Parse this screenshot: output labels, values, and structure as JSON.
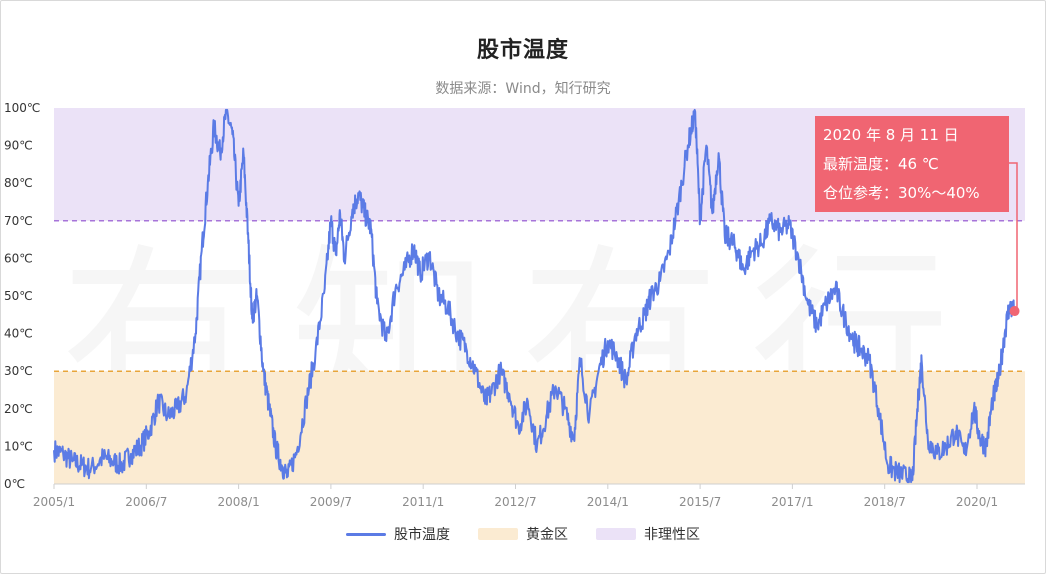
{
  "header": {
    "title": "股市温度",
    "subtitle": "数据来源：Wind，知行研究"
  },
  "watermark": "有知有行",
  "callout": {
    "date": "2020 年 8 月 11 日",
    "temperature": "最新温度：46 ℃",
    "position": "仓位参考：30%～40%"
  },
  "legend": [
    {
      "label": "股市温度",
      "color": "#5b7be5"
    },
    {
      "label": "黄金区",
      "color": "#fbebd2"
    },
    {
      "label": "非理性区",
      "color": "#ebe2f7"
    }
  ],
  "chart_data": {
    "type": "line",
    "title": "股市温度",
    "subtitle": "数据来源：Wind，知行研究",
    "ylim": [
      0,
      100
    ],
    "y_ticks": [
      "0℃",
      "10℃",
      "20℃",
      "30℃",
      "40℃",
      "50℃",
      "60℃",
      "70℃",
      "80℃",
      "90℃",
      "100℃"
    ],
    "x_ticks": [
      "2005/1",
      "2006/7",
      "2008/1",
      "2009/7",
      "2011/1",
      "2012/7",
      "2014/1",
      "2015/7",
      "2017/1",
      "2018/7",
      "2020/1"
    ],
    "x_range": [
      "2005/1",
      "2020/8"
    ],
    "zones": [
      {
        "name": "黄金区",
        "from": 0,
        "to": 30,
        "color": "#fbebd2",
        "line_color": "#e8a53a"
      },
      {
        "name": "非理性区",
        "from": 70,
        "to": 100,
        "color": "#ebe2f7",
        "line_color": "#a774d9"
      }
    ],
    "series": [
      {
        "name": "股市温度",
        "color": "#5b7be5",
        "points": [
          [
            2005.0,
            9
          ],
          [
            2005.15,
            8
          ],
          [
            2005.3,
            6
          ],
          [
            2005.45,
            5
          ],
          [
            2005.6,
            4
          ],
          [
            2005.8,
            7
          ],
          [
            2005.95,
            6
          ],
          [
            2006.1,
            5
          ],
          [
            2006.25,
            8
          ],
          [
            2006.4,
            10
          ],
          [
            2006.55,
            14
          ],
          [
            2006.7,
            22
          ],
          [
            2006.85,
            18
          ],
          [
            2007.0,
            20
          ],
          [
            2007.15,
            24
          ],
          [
            2007.3,
            40
          ],
          [
            2007.4,
            62
          ],
          [
            2007.5,
            80
          ],
          [
            2007.6,
            95
          ],
          [
            2007.7,
            88
          ],
          [
            2007.8,
            99
          ],
          [
            2007.9,
            93
          ],
          [
            2008.0,
            74
          ],
          [
            2008.08,
            88
          ],
          [
            2008.16,
            64
          ],
          [
            2008.22,
            44
          ],
          [
            2008.3,
            50
          ],
          [
            2008.4,
            30
          ],
          [
            2008.5,
            20
          ],
          [
            2008.6,
            10
          ],
          [
            2008.7,
            5
          ],
          [
            2008.8,
            2
          ],
          [
            2008.95,
            9
          ],
          [
            2009.1,
            22
          ],
          [
            2009.25,
            35
          ],
          [
            2009.4,
            52
          ],
          [
            2009.5,
            70
          ],
          [
            2009.58,
            61
          ],
          [
            2009.65,
            72
          ],
          [
            2009.72,
            60
          ],
          [
            2009.85,
            73
          ],
          [
            2009.95,
            77
          ],
          [
            2010.05,
            72
          ],
          [
            2010.15,
            68
          ],
          [
            2010.25,
            48
          ],
          [
            2010.4,
            38
          ],
          [
            2010.55,
            52
          ],
          [
            2010.7,
            57
          ],
          [
            2010.85,
            63
          ],
          [
            2010.95,
            56
          ],
          [
            2011.1,
            61
          ],
          [
            2011.25,
            50
          ],
          [
            2011.4,
            47
          ],
          [
            2011.55,
            40
          ],
          [
            2011.7,
            36
          ],
          [
            2011.85,
            30
          ],
          [
            2012.0,
            22
          ],
          [
            2012.1,
            24
          ],
          [
            2012.25,
            30
          ],
          [
            2012.4,
            24
          ],
          [
            2012.55,
            15
          ],
          [
            2012.7,
            22
          ],
          [
            2012.85,
            10
          ],
          [
            2013.0,
            18
          ],
          [
            2013.15,
            26
          ],
          [
            2013.3,
            20
          ],
          [
            2013.45,
            12
          ],
          [
            2013.55,
            33
          ],
          [
            2013.7,
            18
          ],
          [
            2013.85,
            30
          ],
          [
            2014.0,
            38
          ],
          [
            2014.15,
            34
          ],
          [
            2014.3,
            27
          ],
          [
            2014.45,
            40
          ],
          [
            2014.6,
            45
          ],
          [
            2014.7,
            50
          ],
          [
            2014.85,
            54
          ],
          [
            2015.0,
            62
          ],
          [
            2015.15,
            75
          ],
          [
            2015.3,
            90
          ],
          [
            2015.42,
            99
          ],
          [
            2015.5,
            70
          ],
          [
            2015.6,
            90
          ],
          [
            2015.7,
            72
          ],
          [
            2015.8,
            88
          ],
          [
            2015.9,
            66
          ],
          [
            2016.0,
            65
          ],
          [
            2016.1,
            62
          ],
          [
            2016.2,
            57
          ],
          [
            2016.35,
            62
          ],
          [
            2016.5,
            64
          ],
          [
            2016.65,
            70
          ],
          [
            2016.8,
            67
          ],
          [
            2016.95,
            69
          ],
          [
            2017.1,
            60
          ],
          [
            2017.25,
            48
          ],
          [
            2017.4,
            42
          ],
          [
            2017.55,
            48
          ],
          [
            2017.7,
            52
          ],
          [
            2017.85,
            44
          ],
          [
            2018.0,
            38
          ],
          [
            2018.1,
            36
          ],
          [
            2018.25,
            33
          ],
          [
            2018.4,
            20
          ],
          [
            2018.55,
            5
          ],
          [
            2018.7,
            3
          ],
          [
            2018.85,
            2
          ],
          [
            2018.95,
            1
          ],
          [
            2019.05,
            24
          ],
          [
            2019.1,
            33
          ],
          [
            2019.2,
            12
          ],
          [
            2019.35,
            8
          ],
          [
            2019.5,
            10
          ],
          [
            2019.65,
            14
          ],
          [
            2019.8,
            8
          ],
          [
            2019.95,
            20
          ],
          [
            2020.05,
            12
          ],
          [
            2020.15,
            10
          ],
          [
            2020.25,
            22
          ],
          [
            2020.35,
            28
          ],
          [
            2020.45,
            40
          ],
          [
            2020.52,
            47
          ],
          [
            2020.6,
            46
          ]
        ]
      }
    ],
    "highlight_point": {
      "date": "2020 年 8 月 11 日",
      "x": 2020.61,
      "y": 46
    }
  }
}
